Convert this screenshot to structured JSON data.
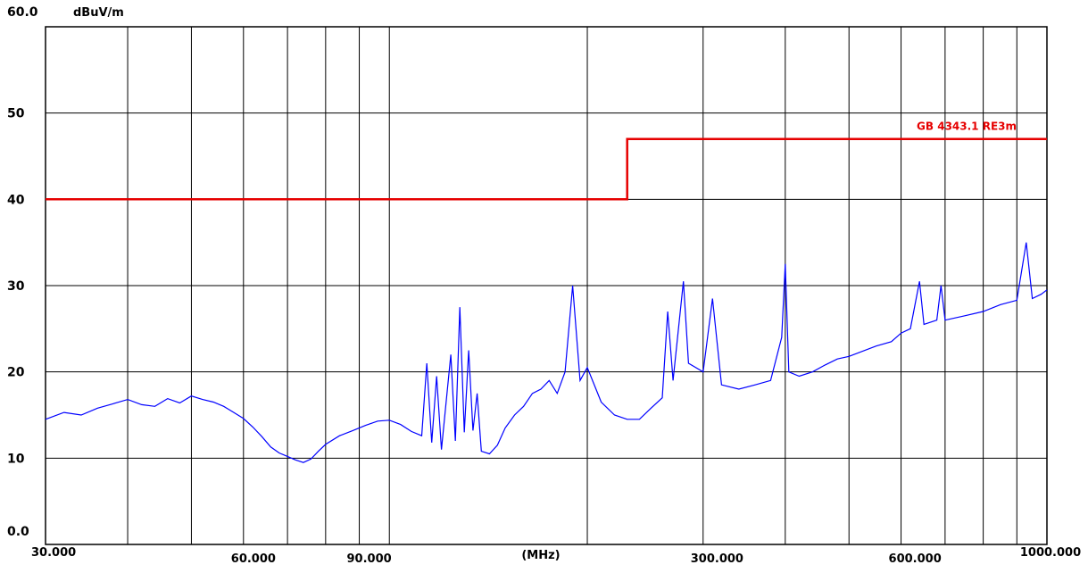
{
  "chart_data": {
    "type": "line",
    "title": "",
    "ylabel": "dBuV/m",
    "xlabel": "(MHz)",
    "x_scale": "log",
    "xlim": [
      30,
      1000
    ],
    "ylim": [
      0,
      60
    ],
    "grid": true,
    "y_ticks": [
      {
        "value": 0,
        "label": "0.0"
      },
      {
        "value": 10,
        "label": "10"
      },
      {
        "value": 20,
        "label": "20"
      },
      {
        "value": 30,
        "label": "30"
      },
      {
        "value": 40,
        "label": "40"
      },
      {
        "value": 50,
        "label": "50"
      },
      {
        "value": 60,
        "label": "60.0"
      }
    ],
    "x_tick_labels": [
      {
        "value": 30,
        "label": "30.000"
      },
      {
        "value": 60,
        "label": "60.000"
      },
      {
        "value": 90,
        "label": "90.000"
      },
      {
        "value": 300,
        "label": "300.000"
      },
      {
        "value": 600,
        "label": "600.000"
      },
      {
        "value": 1000,
        "label": "1000.000"
      }
    ],
    "x_gridlines": [
      30,
      40,
      50,
      60,
      70,
      80,
      90,
      100,
      200,
      300,
      400,
      500,
      600,
      700,
      800,
      900,
      1000
    ],
    "series": [
      {
        "name": "GB 4343.1 RE3m",
        "role": "limit",
        "color": "#e60000",
        "points": [
          [
            30,
            40
          ],
          [
            230,
            40
          ],
          [
            230,
            47
          ],
          [
            1000,
            47
          ]
        ]
      },
      {
        "name": "",
        "role": "measurement",
        "color": "#0000ff",
        "points": [
          [
            30,
            14.5
          ],
          [
            32,
            15.3
          ],
          [
            34,
            15.0
          ],
          [
            36,
            15.8
          ],
          [
            38,
            16.3
          ],
          [
            40,
            16.8
          ],
          [
            42,
            16.2
          ],
          [
            44,
            16.0
          ],
          [
            46,
            16.9
          ],
          [
            48,
            16.4
          ],
          [
            50,
            17.2
          ],
          [
            52,
            16.8
          ],
          [
            54,
            16.5
          ],
          [
            56,
            16.0
          ],
          [
            58,
            15.3
          ],
          [
            60,
            14.6
          ],
          [
            62,
            13.6
          ],
          [
            64,
            12.5
          ],
          [
            66,
            11.3
          ],
          [
            68,
            10.6
          ],
          [
            70,
            10.2
          ],
          [
            72,
            9.8
          ],
          [
            74,
            9.5
          ],
          [
            76,
            9.9
          ],
          [
            78,
            10.8
          ],
          [
            80,
            11.6
          ],
          [
            84,
            12.6
          ],
          [
            88,
            13.2
          ],
          [
            92,
            13.8
          ],
          [
            96,
            14.3
          ],
          [
            100,
            14.4
          ],
          [
            104,
            13.9
          ],
          [
            108,
            13.1
          ],
          [
            112,
            12.6
          ],
          [
            114,
            21.0
          ],
          [
            116,
            11.8
          ],
          [
            118,
            19.5
          ],
          [
            120,
            11.0
          ],
          [
            124,
            22.0
          ],
          [
            126,
            12.0
          ],
          [
            128,
            27.5
          ],
          [
            130,
            13.0
          ],
          [
            132,
            22.5
          ],
          [
            134,
            13.2
          ],
          [
            136,
            17.5
          ],
          [
            138,
            10.8
          ],
          [
            142,
            10.5
          ],
          [
            146,
            11.5
          ],
          [
            150,
            13.5
          ],
          [
            155,
            15.0
          ],
          [
            160,
            16.0
          ],
          [
            165,
            17.5
          ],
          [
            170,
            18.0
          ],
          [
            175,
            19.0
          ],
          [
            180,
            17.5
          ],
          [
            185,
            20.0
          ],
          [
            190,
            30.0
          ],
          [
            195,
            19.0
          ],
          [
            200,
            20.5
          ],
          [
            210,
            16.5
          ],
          [
            220,
            15.0
          ],
          [
            230,
            14.5
          ],
          [
            240,
            14.5
          ],
          [
            250,
            15.8
          ],
          [
            260,
            17.0
          ],
          [
            265,
            27.0
          ],
          [
            270,
            19.0
          ],
          [
            280,
            30.5
          ],
          [
            285,
            21.0
          ],
          [
            300,
            20.0
          ],
          [
            310,
            28.5
          ],
          [
            320,
            18.5
          ],
          [
            340,
            18.0
          ],
          [
            360,
            18.5
          ],
          [
            380,
            19.0
          ],
          [
            395,
            24.0
          ],
          [
            400,
            32.5
          ],
          [
            405,
            20.0
          ],
          [
            420,
            19.5
          ],
          [
            440,
            20.0
          ],
          [
            460,
            20.8
          ],
          [
            480,
            21.5
          ],
          [
            500,
            21.8
          ],
          [
            550,
            23.0
          ],
          [
            580,
            23.5
          ],
          [
            600,
            24.5
          ],
          [
            620,
            25.0
          ],
          [
            640,
            30.5
          ],
          [
            650,
            25.5
          ],
          [
            680,
            26.0
          ],
          [
            690,
            30.0
          ],
          [
            700,
            26.0
          ],
          [
            750,
            26.5
          ],
          [
            800,
            27.0
          ],
          [
            850,
            27.8
          ],
          [
            900,
            28.3
          ],
          [
            930,
            35.0
          ],
          [
            950,
            28.5
          ],
          [
            980,
            29.0
          ],
          [
            1000,
            29.5
          ]
        ]
      }
    ]
  }
}
